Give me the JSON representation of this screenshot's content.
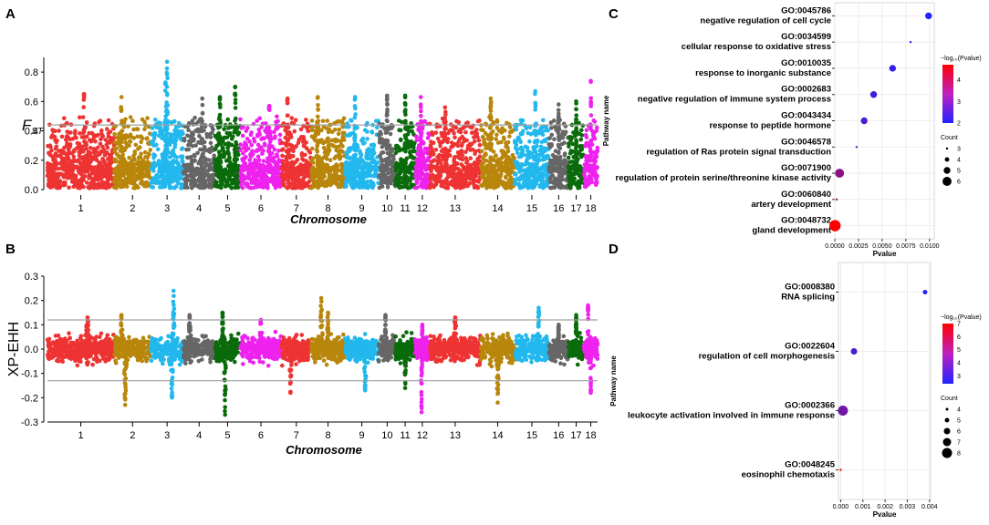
{
  "panels": {
    "a": "A",
    "b": "B",
    "c": "C",
    "d": "D"
  },
  "colors": {
    "chromosomes": [
      "#ee3333",
      "#b8860b",
      "#22b8ee",
      "#666666",
      "#0a6b0a",
      "#ee22ee"
    ],
    "threshold": "#a0a0a0",
    "grad_high": "#ff0000",
    "grad_low": "#2222ff",
    "grid": "#e8e8e8"
  },
  "chart_data": [
    {
      "id": "manhattan-fst",
      "type": "scatter",
      "title": "",
      "xlabel": "Chromosome",
      "ylabel": "F",
      "ylabel_sub": "ST",
      "chromosomes": [
        "1",
        "2",
        "3",
        "4",
        "5",
        "6",
        "7",
        "8",
        "9",
        "10",
        "11",
        "12",
        "13",
        "14",
        "15",
        "16",
        "17",
        "18"
      ],
      "chrom_lengths": [
        274,
        151,
        133,
        130,
        104,
        170,
        121,
        139,
        139,
        69,
        79,
        62,
        208,
        141,
        140,
        80,
        64,
        56
      ],
      "y_ticks": [
        "0.0",
        "0.2",
        "0.4",
        "0.6",
        "0.8"
      ],
      "ylim": [
        0,
        0.9
      ],
      "threshold": 0.44,
      "baseline": 0.12,
      "spread": 0.16,
      "peaks": [
        {
          "chr": "1",
          "pos": 0.55,
          "value": 0.65
        },
        {
          "chr": "2",
          "pos": 0.2,
          "value": 0.63
        },
        {
          "chr": "3",
          "pos": 0.5,
          "value": 0.87
        },
        {
          "chr": "3",
          "pos": 0.45,
          "value": 0.73
        },
        {
          "chr": "4",
          "pos": 0.6,
          "value": 0.62
        },
        {
          "chr": "5",
          "pos": 0.2,
          "value": 0.63
        },
        {
          "chr": "5",
          "pos": 0.8,
          "value": 0.7
        },
        {
          "chr": "6",
          "pos": 0.7,
          "value": 0.57
        },
        {
          "chr": "7",
          "pos": 0.2,
          "value": 0.62
        },
        {
          "chr": "8",
          "pos": 0.2,
          "value": 0.63
        },
        {
          "chr": "9",
          "pos": 0.3,
          "value": 0.63
        },
        {
          "chr": "10",
          "pos": 0.5,
          "value": 0.64
        },
        {
          "chr": "11",
          "pos": 0.5,
          "value": 0.64
        },
        {
          "chr": "12",
          "pos": 0.4,
          "value": 0.63
        },
        {
          "chr": "13",
          "pos": 0.3,
          "value": 0.56
        },
        {
          "chr": "14",
          "pos": 0.3,
          "value": 0.62
        },
        {
          "chr": "15",
          "pos": 0.6,
          "value": 0.67
        },
        {
          "chr": "16",
          "pos": 0.5,
          "value": 0.58
        },
        {
          "chr": "17",
          "pos": 0.5,
          "value": 0.6
        },
        {
          "chr": "18",
          "pos": 0.5,
          "value": 0.74
        }
      ]
    },
    {
      "id": "manhattan-xpehh",
      "type": "scatter",
      "title": "",
      "xlabel": "Chromosome",
      "ylabel": "XP-EHH",
      "chromosomes": [
        "1",
        "2",
        "3",
        "4",
        "5",
        "6",
        "7",
        "8",
        "9",
        "10",
        "11",
        "12",
        "13",
        "14",
        "15",
        "16",
        "17",
        "18"
      ],
      "chrom_lengths": [
        274,
        151,
        133,
        130,
        104,
        170,
        121,
        139,
        139,
        69,
        79,
        62,
        208,
        141,
        140,
        80,
        64,
        56
      ],
      "y_ticks": [
        "0.3",
        "0.2",
        "0.1",
        "0.0",
        "-0.1",
        "-0.2",
        "-0.3"
      ],
      "ylim": [
        -0.3,
        0.3
      ],
      "threshold_upper": 0.12,
      "threshold_lower": -0.13,
      "spread": 0.075,
      "peaks": [
        {
          "chr": "1",
          "pos": 0.6,
          "value": 0.13
        },
        {
          "chr": "2",
          "pos": 0.3,
          "value": -0.23
        },
        {
          "chr": "2",
          "pos": 0.2,
          "value": 0.14
        },
        {
          "chr": "3",
          "pos": 0.7,
          "value": 0.24
        },
        {
          "chr": "3",
          "pos": 0.65,
          "value": -0.2
        },
        {
          "chr": "4",
          "pos": 0.2,
          "value": 0.14
        },
        {
          "chr": "5",
          "pos": 0.4,
          "value": -0.27
        },
        {
          "chr": "5",
          "pos": 0.3,
          "value": 0.15
        },
        {
          "chr": "6",
          "pos": 0.5,
          "value": 0.12
        },
        {
          "chr": "7",
          "pos": 0.3,
          "value": -0.18
        },
        {
          "chr": "8",
          "pos": 0.3,
          "value": 0.21
        },
        {
          "chr": "8",
          "pos": 0.5,
          "value": 0.15
        },
        {
          "chr": "9",
          "pos": 0.6,
          "value": -0.17
        },
        {
          "chr": "10",
          "pos": 0.4,
          "value": 0.14
        },
        {
          "chr": "11",
          "pos": 0.5,
          "value": -0.16
        },
        {
          "chr": "12",
          "pos": 0.45,
          "value": -0.26
        },
        {
          "chr": "12",
          "pos": 0.5,
          "value": 0.1
        },
        {
          "chr": "13",
          "pos": 0.5,
          "value": 0.13
        },
        {
          "chr": "14",
          "pos": 0.5,
          "value": -0.22
        },
        {
          "chr": "15",
          "pos": 0.7,
          "value": 0.17
        },
        {
          "chr": "16",
          "pos": 0.5,
          "value": 0.1
        },
        {
          "chr": "17",
          "pos": 0.5,
          "value": 0.14
        },
        {
          "chr": "18",
          "pos": 0.3,
          "value": 0.18
        },
        {
          "chr": "18",
          "pos": 0.5,
          "value": -0.18
        }
      ]
    },
    {
      "id": "go-bubble-c",
      "type": "scatter",
      "xlabel": "Pvalue",
      "ylabel": "Pathway name",
      "xlim": [
        0,
        0.0105
      ],
      "x_ticks": [
        0.0,
        0.0025,
        0.005,
        0.0075,
        0.01
      ],
      "x_tick_labels": [
        "0.0000",
        "0.0025",
        "0.0050",
        "0.0075",
        "0.0100"
      ],
      "color_title": "−log₁₀(Pvalue)",
      "color_range": [
        2,
        4.7
      ],
      "color_ticks": [
        "4",
        "3",
        "2"
      ],
      "size_title": "Count",
      "size_ticks": [
        "3",
        "4",
        "5",
        "6"
      ],
      "terms": [
        {
          "go": "GO:0045786",
          "name": "negative regulation of cell cycle",
          "pvalue": 0.0099,
          "count": 5
        },
        {
          "go": "GO:0034599",
          "name": "cellular response to oxidative stress",
          "pvalue": 0.008,
          "count": 3
        },
        {
          "go": "GO:0010035",
          "name": "response to inorganic substance",
          "pvalue": 0.0061,
          "count": 5
        },
        {
          "go": "GO:0002683",
          "name": "negative regulation of immune system process",
          "pvalue": 0.0041,
          "count": 5
        },
        {
          "go": "GO:0043434",
          "name": "response to peptide hormone",
          "pvalue": 0.0031,
          "count": 5
        },
        {
          "go": "GO:0046578",
          "name": "regulation of Ras protein signal transduction",
          "pvalue": 0.0023,
          "count": 3
        },
        {
          "go": "GO:0071900",
          "name": "regulation of protein serine/threonine kinase activity",
          "pvalue": 0.0005,
          "count": 6
        },
        {
          "go": "GO:0060840",
          "name": "artery development",
          "pvalue": 0.0002,
          "count": 3
        },
        {
          "go": "GO:0048732",
          "name": "gland development",
          "pvalue": 2e-05,
          "count": 7
        }
      ]
    },
    {
      "id": "go-bubble-d",
      "type": "scatter",
      "xlabel": "Pvalue",
      "ylabel": "Pathway name",
      "xlim": [
        -0.0001,
        0.00405
      ],
      "x_ticks": [
        0.0,
        0.001,
        0.002,
        0.003,
        0.004
      ],
      "x_tick_labels": [
        "0.000",
        "0.001",
        "0.002",
        "0.003",
        "0.004"
      ],
      "color_title": "−log₁₀(Pvalue)",
      "color_range": [
        2.4,
        7
      ],
      "color_ticks": [
        "7",
        "6",
        "5",
        "4",
        "3"
      ],
      "size_title": "Count",
      "size_ticks": [
        "4",
        "5",
        "6",
        "7",
        "8"
      ],
      "terms": [
        {
          "go": "GO:0008380",
          "name": "RNA splicing",
          "pvalue": 0.0038,
          "count": 5
        },
        {
          "go": "GO:0022604",
          "name": "regulation of cell morphogenesis",
          "pvalue": 0.0006,
          "count": 6
        },
        {
          "go": "GO:0002366",
          "name": "leukocyte activation involved in immune response",
          "pvalue": 0.0001,
          "count": 8
        },
        {
          "go": "GO:0048245",
          "name": "eosinophil chemotaxis",
          "pvalue": 1e-07,
          "count": 3
        }
      ]
    }
  ]
}
